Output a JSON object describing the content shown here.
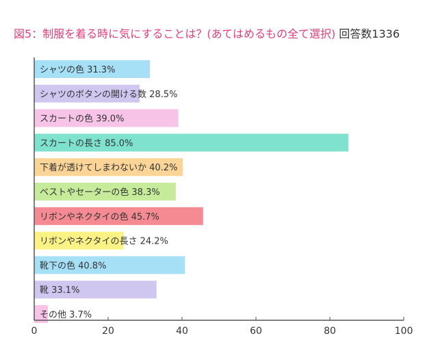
{
  "title": {
    "main": "図5：制服を着る時に気にすることは？(あてはめるもの全て選択)",
    "count": "回答数1336"
  },
  "chart_data": {
    "type": "bar",
    "orientation": "horizontal",
    "categories": [
      "シャツの色",
      "シャツのボタンの開ける数",
      "スカートの色",
      "スカートの長さ",
      "下着が透けてしまわないか",
      "ベストやセーターの色",
      "リボンやネクタイの色",
      "リボンやネクタイの長さ",
      "靴下の色",
      "靴",
      "その他"
    ],
    "values": [
      31.3,
      28.5,
      39.0,
      85.0,
      40.2,
      38.3,
      45.7,
      24.2,
      40.8,
      33.1,
      3.7
    ],
    "data_labels": [
      "シャツの色 31.3%",
      "シャツのボタンの開ける数 28.5%",
      "スカートの色 39.0%",
      "スカートの長さ 85.0%",
      "下着が透けてしまわないか 40.2%",
      "ベストやセーターの色 38.3%",
      "リボンやネクタイの色 45.7%",
      "リボンやネクタイの長さ 24.2%",
      "靴下の色 40.8%",
      "靴 33.1%",
      "その他 3.7%"
    ],
    "colors": [
      "#a6e0f7",
      "#cfc7f0",
      "#f7c3e6",
      "#7fe2cf",
      "#fbd597",
      "#c6eb9a",
      "#f58a92",
      "#fbf286",
      "#a6e0f7",
      "#cfc7f0",
      "#f7c3e6"
    ],
    "xlim": [
      0,
      100
    ],
    "xticks": [
      "0",
      "20",
      "40",
      "60",
      "80",
      "100"
    ],
    "grid": false
  }
}
